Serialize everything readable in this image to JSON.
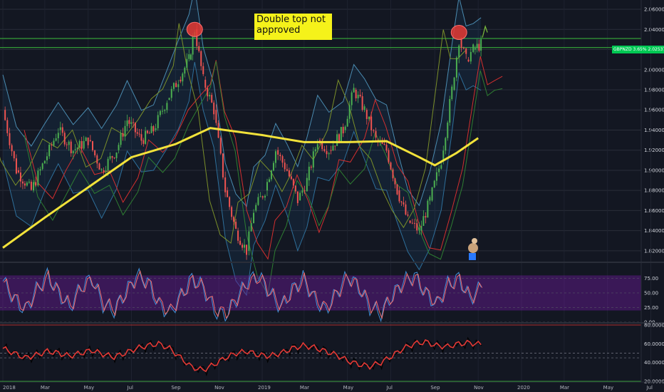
{
  "annotation": {
    "text": "Double top not approved"
  },
  "price_tag": "GBPNZD 3.65% 2.02537",
  "colors": {
    "background": "#131722",
    "sma": "#f2e23a",
    "upper_band": "#4a8bb0",
    "lower_band": "#2e6f9a",
    "cloud_red": "#d32f2f",
    "cloud_green": "#2e7d32",
    "bull_candle": "#4caf50",
    "bear_candle": "#ef5350",
    "markers": "#e53935",
    "stoch_band": "#6a1b9a",
    "rsi_line": "#e53935",
    "price_tag": "#00c853",
    "annotation_bg": "#f5f21a"
  },
  "chart_data": [
    {
      "type": "line",
      "name": "GBPNZD price",
      "y_ticks": [
        "2.06000",
        "2.04000",
        "2.02000",
        "2.00000",
        "1.98000",
        "1.96000",
        "1.94000",
        "1.92000",
        "1.90000",
        "1.88000",
        "1.86000",
        "1.84000",
        "1.82000"
      ],
      "ylim": [
        1.81,
        2.065
      ],
      "x_ticks": [
        "2018",
        "Mar",
        "May",
        "Jul",
        "Sep",
        "Nov",
        "2019",
        "Mar",
        "May",
        "Jul",
        "Sep",
        "Nov",
        "2020",
        "Mar",
        "May",
        "Jul"
      ],
      "price": [
        [
          "2018-01-01",
          1.96
        ],
        [
          "2018-01-20",
          1.9
        ],
        [
          "2018-02-10",
          1.88
        ],
        [
          "2018-03-01",
          1.91
        ],
        [
          "2018-03-20",
          1.94
        ],
        [
          "2018-04-10",
          1.92
        ],
        [
          "2018-05-01",
          1.93
        ],
        [
          "2018-05-20",
          1.9
        ],
        [
          "2018-06-10",
          1.92
        ],
        [
          "2018-06-25",
          1.95
        ],
        [
          "2018-07-15",
          1.93
        ],
        [
          "2018-08-01",
          1.94
        ],
        [
          "2018-08-20",
          1.97
        ],
        [
          "2018-09-05",
          1.99
        ],
        [
          "2018-09-20",
          2.01
        ],
        [
          "2018-09-28",
          2.04
        ],
        [
          "2018-10-10",
          1.99
        ],
        [
          "2018-10-25",
          1.96
        ],
        [
          "2018-11-10",
          1.88
        ],
        [
          "2018-11-25",
          1.84
        ],
        [
          "2018-12-10",
          1.82
        ],
        [
          "2018-12-20",
          1.86
        ],
        [
          "2019-01-05",
          1.88
        ],
        [
          "2019-01-20",
          1.92
        ],
        [
          "2019-02-05",
          1.9
        ],
        [
          "2019-02-20",
          1.87
        ],
        [
          "2019-03-05",
          1.89
        ],
        [
          "2019-03-20",
          1.93
        ],
        [
          "2019-04-05",
          1.92
        ],
        [
          "2019-04-25",
          1.94
        ],
        [
          "2019-05-10",
          1.98
        ],
        [
          "2019-05-25",
          1.96
        ],
        [
          "2019-06-10",
          1.93
        ],
        [
          "2019-06-25",
          1.92
        ],
        [
          "2019-07-10",
          1.88
        ],
        [
          "2019-07-25",
          1.85
        ],
        [
          "2019-08-10",
          1.84
        ],
        [
          "2019-08-25",
          1.87
        ],
        [
          "2019-09-10",
          1.91
        ],
        [
          "2019-09-25",
          1.98
        ],
        [
          "2019-10-05",
          2.03
        ],
        [
          "2019-10-15",
          2.01
        ],
        [
          "2019-10-25",
          2.02
        ],
        [
          "2019-11-05",
          2.025
        ]
      ],
      "sma": [
        [
          "2018-01-01",
          1.823
        ],
        [
          "2018-03-01",
          1.853
        ],
        [
          "2018-05-01",
          1.883
        ],
        [
          "2018-07-01",
          1.913
        ],
        [
          "2018-09-01",
          1.926
        ],
        [
          "2018-10-20",
          1.942
        ],
        [
          "2019-01-01",
          1.935
        ],
        [
          "2019-03-01",
          1.928
        ],
        [
          "2019-05-01",
          1.928
        ],
        [
          "2019-06-25",
          1.929
        ],
        [
          "2019-08-10",
          1.913
        ],
        [
          "2019-09-01",
          1.905
        ],
        [
          "2019-10-01",
          1.917
        ],
        [
          "2019-11-01",
          1.932
        ]
      ],
      "markers": [
        [
          "2018-09-28",
          2.04
        ],
        [
          "2019-10-05",
          2.037
        ]
      ],
      "last_price": 2.02537
    },
    {
      "type": "line",
      "name": "oscillator 1",
      "y_ticks": [
        "75.00",
        "50.00",
        "25.00",
        "0.00"
      ],
      "ylim": [
        0,
        100
      ],
      "band": [
        20,
        80
      ],
      "values": [
        70,
        40,
        20,
        55,
        80,
        50,
        25,
        60,
        75,
        30,
        20,
        50,
        80,
        70,
        30,
        15,
        45,
        75,
        60,
        20,
        10,
        40,
        70,
        80,
        50,
        25,
        55,
        75,
        40,
        20,
        50,
        80,
        60,
        25,
        15,
        45,
        70,
        80,
        50,
        30,
        65,
        75,
        40,
        60
      ]
    },
    {
      "type": "line",
      "name": "oscillator 2",
      "y_ticks": [
        "80.00000",
        "60.00000",
        "40.00000",
        "20.00000"
      ],
      "ylim": [
        20,
        80
      ],
      "levels": [
        80,
        50,
        45,
        20
      ],
      "values": [
        55,
        50,
        45,
        48,
        52,
        50,
        47,
        50,
        53,
        49,
        46,
        50,
        55,
        58,
        60,
        55,
        45,
        35,
        32,
        38,
        45,
        50,
        52,
        48,
        47,
        50,
        55,
        58,
        56,
        52,
        48,
        42,
        38,
        36,
        40,
        47,
        55,
        60,
        62,
        58,
        57,
        60,
        61,
        59
      ]
    }
  ]
}
